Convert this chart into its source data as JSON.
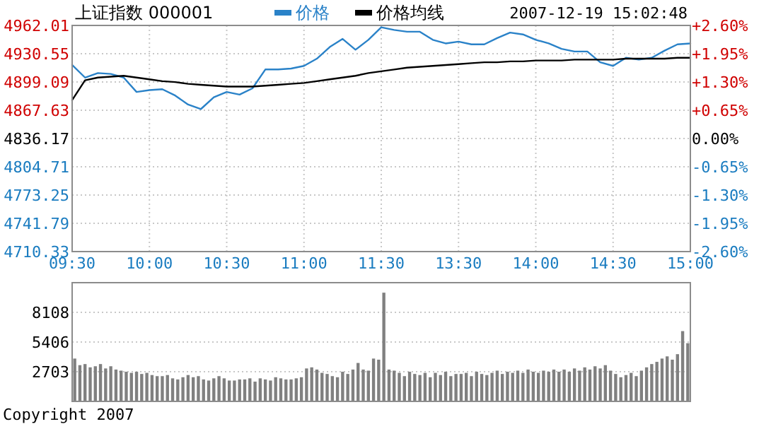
{
  "chart_data": [
    {
      "type": "line",
      "title": "上证指数 000001",
      "subtitle": "2007-12-19 15:02:48",
      "legend": "top",
      "grid": true,
      "categories": [
        "09:30",
        null,
        null,
        null,
        null,
        null,
        "10:00",
        null,
        null,
        null,
        null,
        null,
        "10:30",
        null,
        null,
        null,
        null,
        null,
        "11:00",
        null,
        null,
        null,
        null,
        null,
        "11:30",
        null,
        null,
        null,
        null,
        null,
        "13:30",
        null,
        null,
        null,
        null,
        null,
        "14:00",
        null,
        null,
        null,
        null,
        null,
        "14:30",
        null,
        null,
        null,
        null,
        null,
        "15:00"
      ],
      "ylim": [
        4710.33,
        4962.01
      ],
      "yticks": [
        4710.33,
        4741.79,
        4773.25,
        4804.71,
        4836.17,
        4867.63,
        4899.09,
        4930.55,
        4962.01
      ],
      "y2lim": [
        -2.6,
        2.6
      ],
      "y2ticks": [
        {
          "value": -2.6,
          "label": "-2.60%"
        },
        {
          "value": -1.95,
          "label": "-1.95%"
        },
        {
          "value": -1.3,
          "label": "-1.30%"
        },
        {
          "value": -0.65,
          "label": "-0.65%"
        },
        {
          "value": 0,
          "label": "0.00%"
        },
        {
          "value": 0.65,
          "label": "+0.65%"
        },
        {
          "value": 1.3,
          "label": "+1.30%"
        },
        {
          "value": 1.95,
          "label": "+1.95%"
        },
        {
          "value": 2.6,
          "label": "+2.60%"
        }
      ],
      "series": [
        {
          "name": "价格",
          "color": "#2a82c8",
          "values": [
            4918,
            4904,
            4909,
            4908,
            4904,
            4888,
            4890,
            4891,
            4884,
            4874,
            4869,
            4882,
            4888,
            4885,
            4892,
            4913,
            4913,
            4914,
            4917,
            4925,
            4938,
            4947,
            4935,
            4946,
            4960,
            4957,
            4955,
            4955,
            4946,
            4942,
            4944,
            4941,
            4941,
            4948,
            4954,
            4952,
            4946,
            4942,
            4936,
            4933,
            4933,
            4921,
            4917,
            4926,
            4924,
            4926,
            4934,
            4941,
            4942
          ]
        },
        {
          "name": "价格均线",
          "color": "#000000",
          "values": [
            4879,
            4901,
            4904,
            4905,
            4906,
            4904,
            4902,
            4900,
            4899,
            4897,
            4896,
            4895,
            4894,
            4894,
            4894,
            4895,
            4896,
            4897,
            4898,
            4900,
            4902,
            4904,
            4906,
            4909,
            4911,
            4913,
            4915,
            4916,
            4917,
            4918,
            4919,
            4920,
            4921,
            4921,
            4922,
            4922,
            4923,
            4923,
            4923,
            4924,
            4924,
            4924,
            4924,
            4925,
            4925,
            4925,
            4925,
            4926,
            4926
          ]
        }
      ]
    },
    {
      "type": "bar",
      "grid": "y",
      "tick_labels": "y",
      "color": "#808080",
      "annotations": [
        "Copyright 2007"
      ],
      "categories": [
        null,
        null,
        null,
        null,
        null,
        null,
        null,
        null,
        null,
        null,
        null,
        null,
        null,
        null,
        null,
        null,
        null,
        null,
        null,
        null,
        null,
        null,
        null,
        null,
        null,
        null,
        null,
        null,
        null,
        null,
        null,
        null,
        null,
        null,
        null,
        null,
        null,
        null,
        null,
        null,
        null,
        null,
        null,
        null,
        null,
        null,
        null,
        null,
        null,
        null,
        null,
        null,
        null,
        null,
        null,
        null,
        null,
        null,
        null,
        null,
        null,
        null,
        null,
        null,
        null,
        null,
        null,
        null,
        null,
        null,
        null,
        null,
        null,
        null,
        null,
        null,
        null,
        null,
        null,
        null,
        null,
        null,
        null,
        null,
        null,
        null,
        null,
        null,
        null,
        null,
        null,
        null,
        null,
        null,
        null,
        null,
        null,
        null,
        null,
        null,
        null,
        null,
        null,
        null,
        null,
        null,
        null,
        null,
        null,
        null,
        null,
        null,
        null,
        null,
        null,
        null,
        null,
        null,
        null,
        null
      ],
      "ylim": [
        0,
        10811
      ],
      "yticks": [
        2703,
        5406,
        8108
      ],
      "values": [
        3900,
        3300,
        3400,
        3100,
        3200,
        3400,
        3000,
        3200,
        2900,
        2800,
        2700,
        2600,
        2700,
        2500,
        2600,
        2400,
        2300,
        2300,
        2400,
        2100,
        2000,
        2200,
        2400,
        2200,
        2300,
        2000,
        1900,
        2100,
        2300,
        2100,
        1900,
        1900,
        2000,
        2000,
        2100,
        1800,
        2100,
        2000,
        1900,
        2200,
        2100,
        2000,
        2000,
        2100,
        2200,
        3000,
        3100,
        2900,
        2600,
        2500,
        2300,
        2200,
        2700,
        2500,
        2900,
        3500,
        2900,
        2800,
        3900,
        3800,
        9900,
        2900,
        2800,
        2600,
        2300,
        2700,
        2500,
        2400,
        2600,
        2200,
        2600,
        2400,
        2700,
        2300,
        2500,
        2500,
        2600,
        2300,
        2700,
        2500,
        2400,
        2600,
        2800,
        2500,
        2700,
        2600,
        2800,
        2600,
        2900,
        2700,
        2600,
        2800,
        2700,
        2900,
        2700,
        2900,
        2700,
        3000,
        2800,
        3100,
        2900,
        3200,
        3000,
        3300,
        2800,
        2500,
        2200,
        2400,
        2600,
        2300,
        2800,
        3100,
        3400,
        3600,
        3900,
        4100,
        3800,
        4300,
        6400,
        5300
      ]
    }
  ]
}
